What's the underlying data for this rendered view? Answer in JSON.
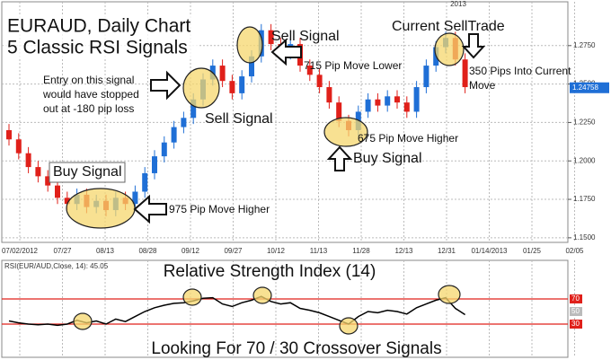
{
  "chart_data": {
    "type": "candlestick",
    "title": [
      "EURAUD, Daily Chart",
      "5 Classic RSI Signals"
    ],
    "year_label": "2013",
    "open": [
      1.22,
      1.214,
      1.205,
      1.196,
      1.19,
      1.184,
      1.176,
      1.172,
      1.178,
      1.17,
      1.174,
      1.168,
      1.176,
      1.172,
      1.18,
      1.192,
      1.203,
      1.212,
      1.222,
      1.228,
      1.24,
      1.253,
      1.262,
      1.252,
      1.244,
      1.255,
      1.268,
      1.285,
      1.276,
      1.27,
      1.276,
      1.262,
      1.256,
      1.248,
      1.238,
      1.226,
      1.22,
      1.232,
      1.24,
      1.236,
      1.242,
      1.238,
      1.232,
      1.248,
      1.262,
      1.274,
      1.28,
      1.266
    ],
    "high": [
      1.224,
      1.218,
      1.209,
      1.2,
      1.194,
      1.188,
      1.18,
      1.182,
      1.182,
      1.178,
      1.178,
      1.18,
      1.18,
      1.184,
      1.196,
      1.207,
      1.216,
      1.226,
      1.232,
      1.244,
      1.257,
      1.266,
      1.266,
      1.256,
      1.259,
      1.272,
      1.289,
      1.289,
      1.28,
      1.28,
      1.28,
      1.266,
      1.26,
      1.252,
      1.242,
      1.23,
      1.236,
      1.244,
      1.244,
      1.246,
      1.246,
      1.242,
      1.252,
      1.266,
      1.278,
      1.284,
      1.284,
      1.27
    ],
    "low": [
      1.21,
      1.201,
      1.192,
      1.186,
      1.18,
      1.172,
      1.168,
      1.168,
      1.166,
      1.166,
      1.164,
      1.164,
      1.168,
      1.168,
      1.176,
      1.188,
      1.199,
      1.208,
      1.218,
      1.224,
      1.236,
      1.249,
      1.248,
      1.24,
      1.24,
      1.251,
      1.264,
      1.272,
      1.266,
      1.266,
      1.258,
      1.252,
      1.244,
      1.234,
      1.222,
      1.216,
      1.216,
      1.228,
      1.232,
      1.232,
      1.234,
      1.228,
      1.228,
      1.244,
      1.258,
      1.27,
      1.262,
      1.244
    ],
    "close": [
      1.214,
      1.205,
      1.196,
      1.19,
      1.184,
      1.176,
      1.172,
      1.178,
      1.17,
      1.174,
      1.168,
      1.176,
      1.172,
      1.18,
      1.192,
      1.203,
      1.212,
      1.222,
      1.228,
      1.24,
      1.253,
      1.262,
      1.252,
      1.244,
      1.255,
      1.268,
      1.285,
      1.276,
      1.27,
      1.276,
      1.262,
      1.256,
      1.248,
      1.238,
      1.226,
      1.22,
      1.232,
      1.24,
      1.236,
      1.242,
      1.238,
      1.232,
      1.248,
      1.262,
      1.274,
      1.28,
      1.266,
      1.248
    ],
    "up_color": "#1f6fd6",
    "down_color": "#e0201a",
    "ylim": [
      1.147,
      1.3
    ],
    "yticks": [
      {
        "value": 1.15,
        "label": "1.1500"
      },
      {
        "value": 1.175,
        "label": "1.1750"
      },
      {
        "value": 1.2,
        "label": "1.2000"
      },
      {
        "value": 1.225,
        "label": "1.2250"
      },
      {
        "value": 1.25,
        "label": "1.2500"
      },
      {
        "value": 1.275,
        "label": "1.2750"
      }
    ],
    "last_price": 1.24758,
    "xlabels": [
      "07/02/2012",
      "07/27",
      "08/13",
      "08/28",
      "09/12",
      "09/27",
      "10/12",
      "11/13",
      "11/28",
      "12/13",
      "12/31",
      "01/14/2013",
      "01/25",
      "02/05"
    ],
    "grid": true,
    "annotations": {
      "entry": [
        "Entry on this signal",
        "would have stopped",
        "out at -180 pip loss"
      ],
      "sell1": "Sell Signal",
      "sell2": "Sell Signal",
      "move715": "715 Pip Move Lower",
      "current": "Current SellTrade",
      "move350": [
        "350 Pips Into Current",
        "Move"
      ],
      "move675": "675 Pip Move Higher",
      "buy1": "Buy Signal",
      "buy2": "Buy Signal",
      "move975": "975 Pip Move Higher"
    },
    "rsi": {
      "title": "Relative Strength Index (14)",
      "label": "RSI(EUR/AUD,Close, 14): 45.05",
      "color": "#000000",
      "values": [
        35,
        32,
        30,
        29,
        30,
        28,
        30,
        36,
        32,
        35,
        30,
        38,
        34,
        42,
        50,
        56,
        60,
        63,
        64,
        67,
        71,
        72,
        62,
        58,
        64,
        68,
        74,
        66,
        62,
        64,
        55,
        52,
        48,
        42,
        36,
        30,
        42,
        50,
        48,
        52,
        50,
        46,
        56,
        62,
        68,
        72,
        55,
        45
      ],
      "ylim": [
        -20,
        120
      ],
      "yticks": [
        70,
        50,
        30
      ],
      "levels": [
        70,
        30
      ],
      "level_color": "#e0201a",
      "footer": "Looking For 70 / 30 Crossover Signals"
    }
  }
}
